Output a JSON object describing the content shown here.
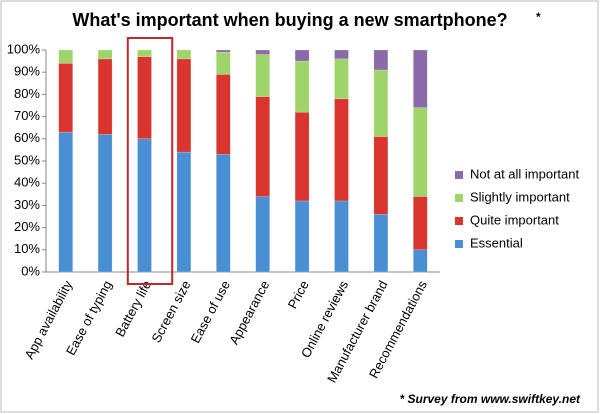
{
  "chart_data": {
    "type": "stacked_bar",
    "title": "What's important when buying a new smartphone?",
    "title_note": "*",
    "footnote": "* Survey from www.swiftkey.net",
    "categories": [
      "App availability",
      "Ease of typing",
      "Battery life",
      "Screen size",
      "Ease of use",
      "Appearance",
      "Price",
      "Online reviews",
      "Manufacturer brand",
      "Recommendations"
    ],
    "series": [
      {
        "name": "Essential",
        "color": "#4a8fd4",
        "values": [
          63,
          62,
          60,
          54,
          53,
          34,
          32,
          32,
          26,
          10
        ]
      },
      {
        "name": "Quite important",
        "color": "#d9352e",
        "values": [
          31,
          34,
          37,
          42,
          36,
          45,
          40,
          46,
          35,
          24
        ]
      },
      {
        "name": "Slightly important",
        "color": "#9fd46a",
        "values": [
          6,
          4,
          3,
          4,
          10,
          19,
          23,
          18,
          30,
          40
        ]
      },
      {
        "name": "Not at all important",
        "color": "#8b6aaa",
        "values": [
          0,
          0,
          0,
          0,
          1,
          2,
          5,
          4,
          9,
          26
        ]
      }
    ],
    "ylim": [
      0,
      100
    ],
    "yticks": [
      {
        "value": 0,
        "label": "0%"
      },
      {
        "value": 10,
        "label": "10%"
      },
      {
        "value": 20,
        "label": "20%"
      },
      {
        "value": 30,
        "label": "30%"
      },
      {
        "value": 40,
        "label": "40%"
      },
      {
        "value": 50,
        "label": "50%"
      },
      {
        "value": 60,
        "label": "60%"
      },
      {
        "value": 70,
        "label": "70%"
      },
      {
        "value": 80,
        "label": "80%"
      },
      {
        "value": 90,
        "label": "90%"
      },
      {
        "value": 100,
        "label": "100%"
      }
    ],
    "legend": "right"
  }
}
